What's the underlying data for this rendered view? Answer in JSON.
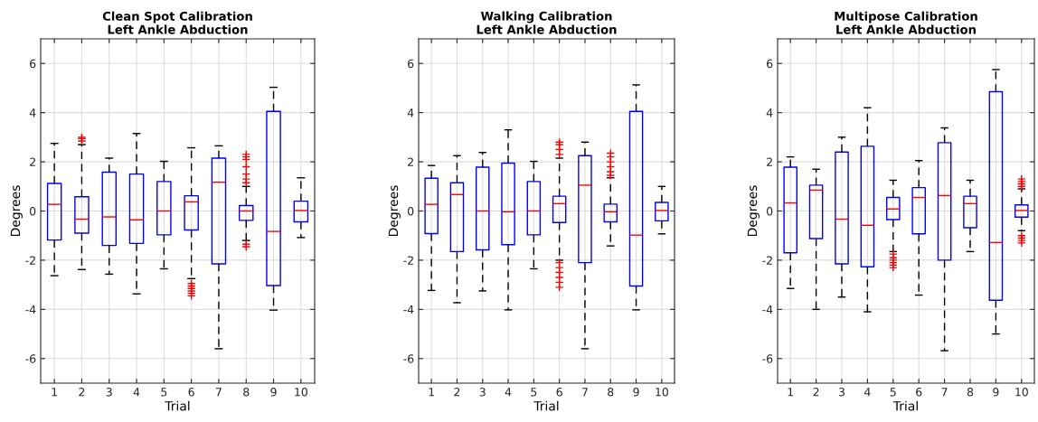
{
  "chart_data": [
    {
      "type": "box",
      "title": "Clean Spot Calibration\nLeft Ankle Abduction",
      "xlabel": "Trial",
      "ylabel": "Degrees",
      "categories": [
        "1",
        "2",
        "3",
        "4",
        "5",
        "6",
        "7",
        "8",
        "9",
        "10"
      ],
      "ylim": [
        -7,
        7
      ],
      "yticks": [
        -6,
        -4,
        -2,
        0,
        2,
        4,
        6
      ],
      "grid": true,
      "boxes": [
        {
          "low": -2.63,
          "q1": -1.18,
          "median": 0.27,
          "q3": 1.12,
          "high": 2.75
        },
        {
          "low": -2.38,
          "q1": -0.9,
          "median": -0.33,
          "q3": 0.58,
          "high": 2.7,
          "outliers": [
            2.85,
            2.95,
            3.0
          ]
        },
        {
          "low": -2.57,
          "q1": -1.4,
          "median": -0.24,
          "q3": 1.58,
          "high": 2.15
        },
        {
          "low": -3.37,
          "q1": -1.32,
          "median": -0.36,
          "q3": 1.5,
          "high": 3.15
        },
        {
          "low": -2.35,
          "q1": -0.97,
          "median": 0.0,
          "q3": 1.2,
          "high": 2.02
        },
        {
          "low": -2.75,
          "q1": -0.77,
          "median": 0.37,
          "q3": 0.62,
          "high": 2.57,
          "outliers": [
            -2.95,
            -3.05,
            -3.15,
            -3.25,
            -3.35,
            -3.45
          ]
        },
        {
          "low": -5.6,
          "q1": -2.15,
          "median": 1.17,
          "q3": 2.15,
          "high": 2.65
        },
        {
          "low": -1.2,
          "q1": -0.38,
          "median": 0.0,
          "q3": 0.22,
          "high": 1.0,
          "outliers": [
            1.15,
            1.3,
            1.5,
            1.8,
            2.1,
            2.2,
            2.3,
            -1.35,
            -1.45
          ]
        },
        {
          "low": -4.03,
          "q1": -3.03,
          "median": -0.83,
          "q3": 4.05,
          "high": 5.03
        },
        {
          "low": -1.08,
          "q1": -0.44,
          "median": 0.02,
          "q3": 0.4,
          "high": 1.35
        }
      ]
    },
    {
      "type": "box",
      "title": "Walking Calibration\nLeft Ankle Abduction",
      "xlabel": "Trial",
      "ylabel": "Degrees",
      "categories": [
        "1",
        "2",
        "3",
        "4",
        "5",
        "6",
        "7",
        "8",
        "9",
        "10"
      ],
      "ylim": [
        -7,
        7
      ],
      "yticks": [
        -6,
        -4,
        -2,
        0,
        2,
        4,
        6
      ],
      "grid": true,
      "boxes": [
        {
          "low": -3.23,
          "q1": -0.92,
          "median": 0.27,
          "q3": 1.33,
          "high": 1.85
        },
        {
          "low": -3.73,
          "q1": -1.65,
          "median": 0.67,
          "q3": 1.15,
          "high": 2.25
        },
        {
          "low": -3.25,
          "q1": -1.58,
          "median": 0.0,
          "q3": 1.78,
          "high": 2.38
        },
        {
          "low": -4.02,
          "q1": -1.37,
          "median": -0.03,
          "q3": 1.95,
          "high": 3.3
        },
        {
          "low": -2.35,
          "q1": -0.97,
          "median": 0.0,
          "q3": 1.2,
          "high": 2.02
        },
        {
          "low": -2.0,
          "q1": -0.47,
          "median": 0.3,
          "q3": 0.6,
          "high": 2.15,
          "outliers": [
            2.3,
            2.5,
            2.7,
            2.8,
            -2.1,
            -2.3,
            -2.5,
            -2.7,
            -2.9,
            -3.1
          ]
        },
        {
          "low": -5.6,
          "q1": -2.1,
          "median": 1.05,
          "q3": 2.25,
          "high": 2.8
        },
        {
          "low": -1.42,
          "q1": -0.44,
          "median": -0.03,
          "q3": 0.28,
          "high": 1.35,
          "outliers": [
            1.45,
            1.6,
            1.8,
            2.0,
            2.2,
            2.35
          ]
        },
        {
          "low": -4.02,
          "q1": -3.05,
          "median": -0.98,
          "q3": 4.05,
          "high": 5.13
        },
        {
          "low": -0.93,
          "q1": -0.4,
          "median": 0.02,
          "q3": 0.35,
          "high": 1.0
        }
      ]
    },
    {
      "type": "box",
      "title": "Multipose Calibration\nLeft Ankle Abduction",
      "xlabel": "Trial",
      "ylabel": "Degrees",
      "categories": [
        "1",
        "2",
        "3",
        "4",
        "5",
        "6",
        "7",
        "8",
        "9",
        "10"
      ],
      "ylim": [
        -7,
        7
      ],
      "yticks": [
        -6,
        -4,
        -2,
        0,
        2,
        4,
        6
      ],
      "grid": true,
      "boxes": [
        {
          "low": -3.15,
          "q1": -1.7,
          "median": 0.33,
          "q3": 1.78,
          "high": 2.2
        },
        {
          "low": -4.0,
          "q1": -1.12,
          "median": 0.85,
          "q3": 1.05,
          "high": 1.7
        },
        {
          "low": -3.5,
          "q1": -2.15,
          "median": -0.33,
          "q3": 2.4,
          "high": 3.0
        },
        {
          "low": -4.1,
          "q1": -2.27,
          "median": -0.58,
          "q3": 2.63,
          "high": 4.2
        },
        {
          "low": -1.65,
          "q1": -0.35,
          "median": 0.08,
          "q3": 0.55,
          "high": 1.25,
          "outliers": [
            -1.75,
            -1.9,
            -2.0,
            -2.1,
            -2.2,
            -2.3
          ]
        },
        {
          "low": -3.42,
          "q1": -0.93,
          "median": 0.55,
          "q3": 0.95,
          "high": 2.05
        },
        {
          "low": -5.68,
          "q1": -2.0,
          "median": 0.63,
          "q3": 2.78,
          "high": 3.38
        },
        {
          "low": -1.65,
          "q1": -0.68,
          "median": 0.3,
          "q3": 0.6,
          "high": 1.25
        },
        {
          "low": -5.0,
          "q1": -3.63,
          "median": -1.28,
          "q3": 4.85,
          "high": 5.75
        },
        {
          "low": -0.8,
          "q1": -0.25,
          "median": 0.02,
          "q3": 0.25,
          "high": 0.9,
          "outliers": [
            1.0,
            1.1,
            1.2,
            1.3,
            -1.0,
            -1.1,
            -1.2,
            -1.3
          ]
        }
      ]
    }
  ]
}
